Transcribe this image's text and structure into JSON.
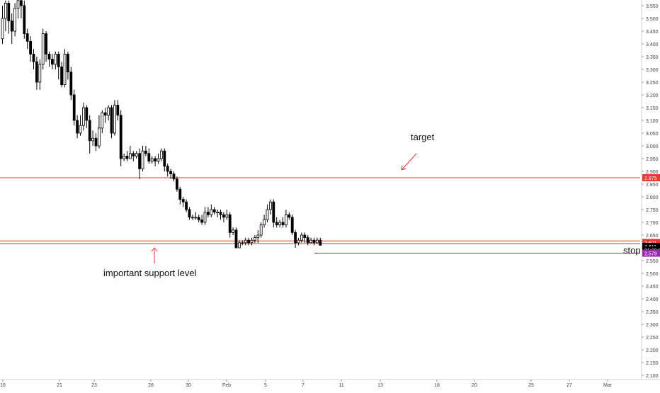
{
  "chart_data": {
    "type": "candlestick",
    "x_ticks": [
      "16",
      "21",
      "23",
      "28",
      "30",
      "Feb",
      "5",
      "7",
      "11",
      "13",
      "18",
      "20",
      "25",
      "27",
      "Mar"
    ],
    "y_ticks": [
      "3.550",
      "3.500",
      "3.450",
      "3.400",
      "3.350",
      "3.300",
      "3.250",
      "3.200",
      "3.150",
      "3.100",
      "3.050",
      "3.000",
      "2.950",
      "2.900",
      "2.850",
      "2.800",
      "2.750",
      "2.700",
      "2.650",
      "2.600",
      "2.550",
      "2.500",
      "2.450",
      "2.400",
      "2.350",
      "2.300",
      "2.250",
      "2.200",
      "2.150",
      "2.100"
    ],
    "ylim": [
      2.09,
      3.57
    ],
    "candles": [
      [
        3.42,
        3.5,
        3.55,
        3.4
      ],
      [
        3.5,
        3.56,
        3.57,
        3.45
      ],
      [
        3.56,
        3.49,
        3.57,
        3.44
      ],
      [
        3.49,
        3.45,
        3.52,
        3.4
      ],
      [
        3.45,
        3.54,
        3.56,
        3.43
      ],
      [
        3.54,
        3.57,
        3.58,
        3.5
      ],
      [
        3.57,
        3.55,
        3.58,
        3.5
      ],
      [
        3.55,
        3.44,
        3.57,
        3.42
      ],
      [
        3.44,
        3.41,
        3.46,
        3.38
      ],
      [
        3.41,
        3.36,
        3.43,
        3.33
      ],
      [
        3.36,
        3.33,
        3.38,
        3.3
      ],
      [
        3.33,
        3.25,
        3.35,
        3.22
      ],
      [
        3.25,
        3.32,
        3.34,
        3.22
      ],
      [
        3.32,
        3.44,
        3.46,
        3.3
      ],
      [
        3.44,
        3.36,
        3.45,
        3.33
      ],
      [
        3.36,
        3.34,
        3.37,
        3.31
      ],
      [
        3.34,
        3.32,
        3.36,
        3.3
      ],
      [
        3.32,
        3.36,
        3.37,
        3.3
      ],
      [
        3.36,
        3.31,
        3.37,
        3.26
      ],
      [
        3.31,
        3.24,
        3.33,
        3.23
      ],
      [
        3.24,
        3.36,
        3.38,
        3.23
      ],
      [
        3.36,
        3.29,
        3.37,
        3.26
      ],
      [
        3.29,
        3.2,
        3.31,
        3.18
      ],
      [
        3.2,
        3.1,
        3.22,
        3.08
      ],
      [
        3.1,
        3.05,
        3.12,
        3.03
      ],
      [
        3.05,
        3.08,
        3.12,
        3.04
      ],
      [
        3.08,
        3.15,
        3.17,
        3.06
      ],
      [
        3.15,
        3.1,
        3.16,
        3.07
      ],
      [
        3.1,
        3.02,
        3.12,
        2.97
      ],
      [
        3.02,
        3.03,
        3.06,
        3.0
      ],
      [
        3.03,
        3.0,
        3.05,
        2.98
      ],
      [
        3.0,
        3.07,
        3.12,
        2.99
      ],
      [
        3.07,
        3.13,
        3.14,
        3.05
      ],
      [
        3.13,
        3.12,
        3.15,
        3.09
      ],
      [
        3.12,
        3.15,
        3.16,
        3.1
      ],
      [
        3.15,
        3.05,
        3.16,
        3.03
      ],
      [
        3.05,
        3.16,
        3.18,
        3.04
      ],
      [
        3.16,
        3.12,
        3.18,
        3.1
      ],
      [
        3.12,
        2.95,
        3.14,
        2.92
      ],
      [
        2.95,
        2.96,
        2.97,
        2.94
      ],
      [
        2.96,
        2.95,
        2.98,
        2.94
      ],
      [
        2.95,
        2.97,
        3.0,
        2.95
      ],
      [
        2.97,
        2.96,
        2.98,
        2.94
      ],
      [
        2.96,
        2.97,
        2.98,
        2.95
      ],
      [
        2.97,
        2.91,
        2.99,
        2.87
      ],
      [
        2.91,
        2.98,
        3.0,
        2.9
      ],
      [
        2.98,
        2.97,
        3.0,
        2.96
      ],
      [
        2.97,
        2.94,
        2.99,
        2.93
      ],
      [
        2.94,
        2.95,
        2.96,
        2.93
      ],
      [
        2.95,
        2.94,
        2.96,
        2.92
      ],
      [
        2.94,
        2.95,
        2.97,
        2.93
      ],
      [
        2.95,
        2.98,
        2.99,
        2.94
      ],
      [
        2.98,
        2.92,
        2.99,
        2.9
      ],
      [
        2.92,
        2.9,
        2.93,
        2.88
      ],
      [
        2.9,
        2.89,
        2.91,
        2.87
      ],
      [
        2.89,
        2.87,
        2.9,
        2.86
      ],
      [
        2.87,
        2.83,
        2.88,
        2.82
      ],
      [
        2.83,
        2.79,
        2.84,
        2.77
      ],
      [
        2.79,
        2.78,
        2.8,
        2.76
      ],
      [
        2.78,
        2.75,
        2.79,
        2.74
      ],
      [
        2.75,
        2.72,
        2.76,
        2.71
      ],
      [
        2.72,
        2.72,
        2.73,
        2.71
      ],
      [
        2.72,
        2.72,
        2.74,
        2.71
      ],
      [
        2.72,
        2.71,
        2.73,
        2.7
      ],
      [
        2.71,
        2.7,
        2.73,
        2.69
      ],
      [
        2.7,
        2.74,
        2.76,
        2.69
      ],
      [
        2.74,
        2.73,
        2.76,
        2.72
      ],
      [
        2.73,
        2.75,
        2.77,
        2.72
      ],
      [
        2.75,
        2.74,
        2.76,
        2.73
      ],
      [
        2.74,
        2.74,
        2.75,
        2.72
      ],
      [
        2.74,
        2.73,
        2.75,
        2.71
      ],
      [
        2.73,
        2.72,
        2.74,
        2.7
      ],
      [
        2.72,
        2.73,
        2.75,
        2.71
      ],
      [
        2.73,
        2.66,
        2.74,
        2.64
      ],
      [
        2.66,
        2.67,
        2.68,
        2.65
      ],
      [
        2.67,
        2.6,
        2.68,
        2.6
      ],
      [
        2.6,
        2.62,
        2.63,
        2.6
      ],
      [
        2.62,
        2.62,
        2.63,
        2.61
      ],
      [
        2.62,
        2.63,
        2.64,
        2.61
      ],
      [
        2.63,
        2.62,
        2.64,
        2.61
      ],
      [
        2.62,
        2.63,
        2.64,
        2.61
      ],
      [
        2.63,
        2.64,
        2.65,
        2.62
      ],
      [
        2.64,
        2.65,
        2.67,
        2.62
      ],
      [
        2.65,
        2.69,
        2.7,
        2.64
      ],
      [
        2.69,
        2.71,
        2.73,
        2.68
      ],
      [
        2.71,
        2.75,
        2.77,
        2.7
      ],
      [
        2.75,
        2.78,
        2.79,
        2.73
      ],
      [
        2.78,
        2.7,
        2.79,
        2.68
      ],
      [
        2.7,
        2.69,
        2.72,
        2.68
      ],
      [
        2.69,
        2.7,
        2.71,
        2.68
      ],
      [
        2.7,
        2.69,
        2.72,
        2.68
      ],
      [
        2.69,
        2.73,
        2.75,
        2.68
      ],
      [
        2.73,
        2.72,
        2.74,
        2.71
      ],
      [
        2.72,
        2.66,
        2.73,
        2.65
      ],
      [
        2.66,
        2.62,
        2.67,
        2.6
      ],
      [
        2.62,
        2.63,
        2.64,
        2.61
      ],
      [
        2.63,
        2.65,
        2.66,
        2.62
      ],
      [
        2.65,
        2.64,
        2.66,
        2.62
      ],
      [
        2.64,
        2.62,
        2.65,
        2.61
      ],
      [
        2.62,
        2.63,
        2.64,
        2.62
      ],
      [
        2.63,
        2.62,
        2.64,
        2.61
      ],
      [
        2.62,
        2.63,
        2.64,
        2.62
      ],
      [
        2.63,
        2.61,
        2.64,
        2.61
      ]
    ],
    "levels": {
      "target": {
        "value": 2.875,
        "label": "2.875",
        "color": "#e53935"
      },
      "support_upper": {
        "value": 2.627,
        "color": "#e53935"
      },
      "support_lower": {
        "value": 2.617,
        "color": "#e53935"
      },
      "stop": {
        "value": 2.579,
        "label": "2.579",
        "color": "#9c27b0"
      }
    },
    "price_labels": {
      "support": {
        "value": 2.621,
        "text": "2.621",
        "color": "#e53935"
      },
      "last": {
        "value": 2.611,
        "text": "2.611",
        "color": "#000000"
      },
      "countdown": {
        "value": 2.6,
        "text": "01:32:07",
        "color": "#000000"
      }
    },
    "annotations": {
      "target": "target",
      "support": "important support level",
      "stop": "stop"
    },
    "colors": {
      "up": "#ffffff",
      "down": "#000000",
      "wick": "#000000",
      "axis_text": "#444444"
    }
  }
}
